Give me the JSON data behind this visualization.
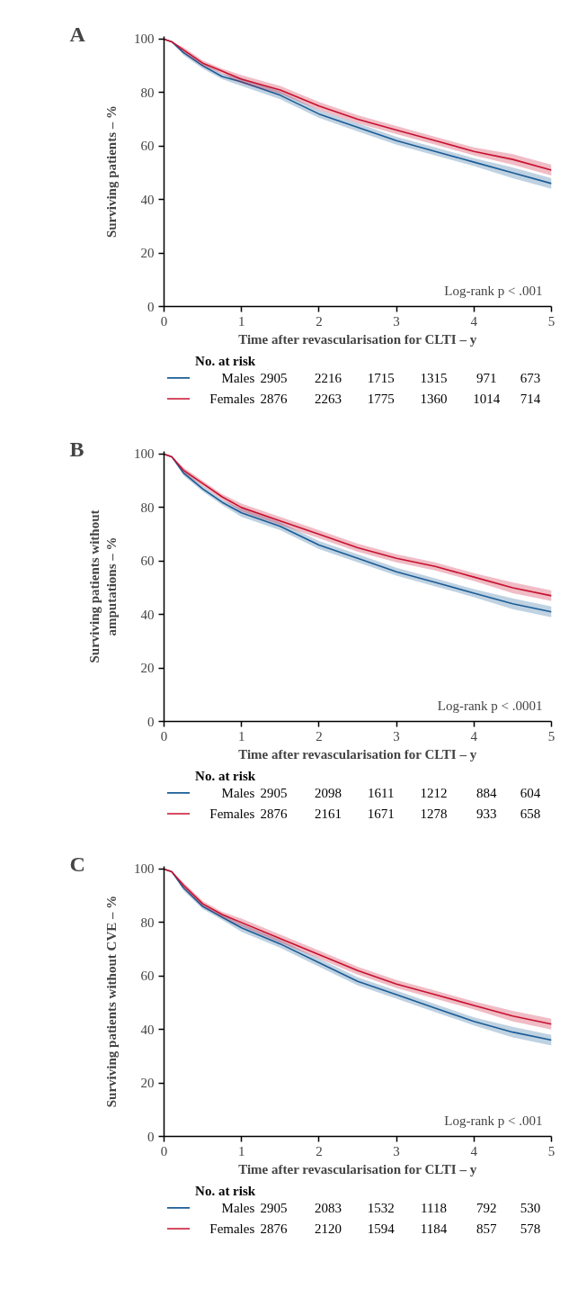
{
  "chart_data": [
    {
      "type": "line",
      "title": "A",
      "xlabel": "Time after revascularisation for CLTI – y",
      "ylabel": "Surviving patients – %",
      "xlim": [
        0,
        5
      ],
      "ylim": [
        0,
        101
      ],
      "xticks": [
        0,
        1,
        2,
        3,
        4,
        5
      ],
      "yticks": [
        0,
        20,
        40,
        60,
        80,
        100
      ],
      "grid": false,
      "legend": "bottom",
      "marker": "none",
      "line_style": "solid",
      "x": [
        0,
        0.1,
        0.25,
        0.5,
        0.75,
        1,
        1.5,
        2,
        2.5,
        3,
        3.5,
        4,
        4.5,
        5
      ],
      "series": [
        {
          "name": "Males",
          "color": "#1a5c96",
          "values": [
            100,
            99,
            95,
            90,
            86,
            84,
            79,
            72,
            67,
            62,
            58,
            54,
            50,
            46
          ],
          "lower": [
            100,
            99,
            94,
            89,
            85,
            82.5,
            77.5,
            70.5,
            65.5,
            60.5,
            56.5,
            52.5,
            48,
            44
          ],
          "upper": [
            100,
            99,
            96,
            91,
            87,
            85.5,
            80.5,
            73.5,
            68.5,
            63.5,
            59.5,
            55.5,
            52,
            48
          ]
        },
        {
          "name": "Females",
          "color": "#c8102e",
          "values": [
            100,
            99,
            96,
            91,
            88,
            85,
            81,
            75,
            70,
            66,
            62,
            58,
            55,
            51
          ],
          "lower": [
            100,
            99,
            95,
            90,
            87,
            83.5,
            79.5,
            73.5,
            68.5,
            64.5,
            60.5,
            56.5,
            53,
            49
          ],
          "upper": [
            100,
            99,
            97,
            92,
            89,
            86.5,
            82.5,
            76.5,
            71.5,
            67.5,
            63.5,
            59.5,
            57,
            53
          ]
        }
      ],
      "annotations": [
        "Log-rank p < .001",
        "No. at risk",
        "2905",
        "2216",
        "1715",
        "1315",
        "971",
        "673",
        "2876",
        "2263",
        "1775",
        "1360",
        "1014",
        "714"
      ]
    },
    {
      "type": "line",
      "title": "B",
      "xlabel": "Time after revascularisation for CLTI – y",
      "ylabel": "Surviving patients without\namputations – %",
      "xlim": [
        0,
        5
      ],
      "ylim": [
        0,
        101
      ],
      "xticks": [
        0,
        1,
        2,
        3,
        4,
        5
      ],
      "yticks": [
        0,
        20,
        40,
        60,
        80,
        100
      ],
      "grid": false,
      "legend": "bottom",
      "marker": "none",
      "line_style": "solid",
      "x": [
        0,
        0.1,
        0.25,
        0.5,
        0.75,
        1,
        1.5,
        2,
        2.5,
        3,
        3.5,
        4,
        4.5,
        5
      ],
      "series": [
        {
          "name": "Males",
          "color": "#1a5c96",
          "values": [
            100,
            99,
            93,
            87,
            82,
            78,
            73,
            66,
            61,
            56,
            52,
            48,
            44,
            41
          ],
          "lower": [
            100,
            99,
            92,
            86,
            81,
            76.5,
            71.5,
            64.5,
            59.5,
            54.5,
            50.5,
            46.5,
            42,
            39
          ],
          "upper": [
            100,
            99,
            94,
            88,
            83,
            79.5,
            74.5,
            67.5,
            62.5,
            57.5,
            53.5,
            49.5,
            46,
            43
          ]
        },
        {
          "name": "Females",
          "color": "#c8102e",
          "values": [
            100,
            99,
            94,
            89,
            84,
            80,
            75,
            70,
            65,
            61,
            58,
            54,
            50,
            47
          ],
          "lower": [
            100,
            99,
            93,
            88,
            83,
            78.5,
            73.5,
            68.5,
            63.5,
            59.5,
            56.5,
            52.5,
            48,
            45
          ],
          "upper": [
            100,
            99,
            95,
            90,
            85,
            81.5,
            76.5,
            71.5,
            66.5,
            62.5,
            59.5,
            55.5,
            52,
            49
          ]
        }
      ],
      "annotations": [
        "Log-rank p < .0001",
        "No. at risk",
        "2905",
        "2098",
        "1611",
        "1212",
        "884",
        "604",
        "2876",
        "2161",
        "1671",
        "1278",
        "933",
        "658"
      ]
    },
    {
      "type": "line",
      "title": "C",
      "xlabel": "Time after revascularisation for CLTI – y",
      "ylabel": "Surviving patients without CVE – %",
      "xlim": [
        0,
        5
      ],
      "ylim": [
        0,
        101
      ],
      "xticks": [
        0,
        1,
        2,
        3,
        4,
        5
      ],
      "yticks": [
        0,
        20,
        40,
        60,
        80,
        100
      ],
      "grid": false,
      "legend": "bottom",
      "marker": "none",
      "line_style": "solid",
      "x": [
        0,
        0.1,
        0.25,
        0.5,
        0.75,
        1,
        1.5,
        2,
        2.5,
        3,
        3.5,
        4,
        4.5,
        5
      ],
      "series": [
        {
          "name": "Males",
          "color": "#1a5c96",
          "values": [
            100,
            99,
            93,
            86,
            82,
            78,
            72,
            65,
            58,
            53,
            48,
            43,
            39,
            36
          ],
          "lower": [
            100,
            99,
            92,
            85,
            81,
            76.5,
            70.5,
            63.5,
            56.5,
            51.5,
            46.5,
            41.5,
            37,
            34
          ],
          "upper": [
            100,
            99,
            94,
            87,
            83,
            79.5,
            73.5,
            66.5,
            59.5,
            54.5,
            49.5,
            44.5,
            41,
            38
          ]
        },
        {
          "name": "Females",
          "color": "#c8102e",
          "values": [
            100,
            99,
            94,
            87,
            83,
            80,
            74,
            68,
            62,
            57,
            53,
            49,
            45,
            42
          ],
          "lower": [
            100,
            99,
            93,
            86,
            82,
            78.5,
            72.5,
            66.5,
            60.5,
            55.5,
            51.5,
            47.5,
            43,
            40
          ],
          "upper": [
            100,
            99,
            95,
            88,
            84,
            81.5,
            75.5,
            69.5,
            63.5,
            58.5,
            54.5,
            50.5,
            47,
            44
          ]
        }
      ],
      "annotations": [
        "Log-rank p < .001",
        "No. at risk",
        "2905",
        "2083",
        "1532",
        "1118",
        "792",
        "530",
        "2876",
        "2120",
        "1594",
        "1184",
        "857",
        "578"
      ]
    }
  ]
}
